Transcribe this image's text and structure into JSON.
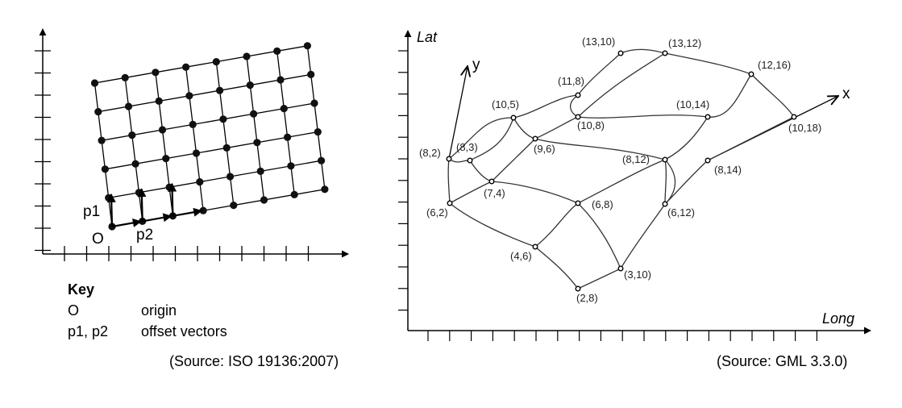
{
  "left_diagram": {
    "label_origin": "O",
    "label_p1": "p1",
    "label_p2": "p2",
    "key": {
      "title": "Key",
      "rows": [
        {
          "term": "O",
          "desc": "origin"
        },
        {
          "term": "p1, p2",
          "desc": "offset vectors"
        }
      ]
    },
    "source": "(Source: ISO 19136:2007)"
  },
  "right_diagram": {
    "axis_lat": "Lat",
    "axis_long": "Long",
    "axis_x": "x",
    "axis_y": "y",
    "source": "(Source: GML 3.3.0)",
    "points": [
      {
        "id": "p13-10",
        "label": "(13,10)"
      },
      {
        "id": "p13-12",
        "label": "(13,12)"
      },
      {
        "id": "p12-16",
        "label": "(12,16)"
      },
      {
        "id": "p11-8",
        "label": "(11,8)"
      },
      {
        "id": "p10-5",
        "label": "(10,5)"
      },
      {
        "id": "p10-8",
        "label": "(10,8)"
      },
      {
        "id": "p10-14",
        "label": "(10,14)"
      },
      {
        "id": "p10-18",
        "label": "(10,18)"
      },
      {
        "id": "p9-6",
        "label": "(9,6)"
      },
      {
        "id": "p8-2",
        "label": "(8,2)"
      },
      {
        "id": "p8-3",
        "label": "(8,3)"
      },
      {
        "id": "p8-12",
        "label": "(8,12)"
      },
      {
        "id": "p8-14",
        "label": "(8,14)"
      },
      {
        "id": "p7-4",
        "label": "(7,4)"
      },
      {
        "id": "p6-2",
        "label": "(6,2)"
      },
      {
        "id": "p6-8",
        "label": "(6,8)"
      },
      {
        "id": "p6-12",
        "label": "(6,12)"
      },
      {
        "id": "p4-6",
        "label": "(4,6)"
      },
      {
        "id": "p3-10",
        "label": "(3,10)"
      },
      {
        "id": "p2-8",
        "label": "(2,8)"
      }
    ]
  }
}
